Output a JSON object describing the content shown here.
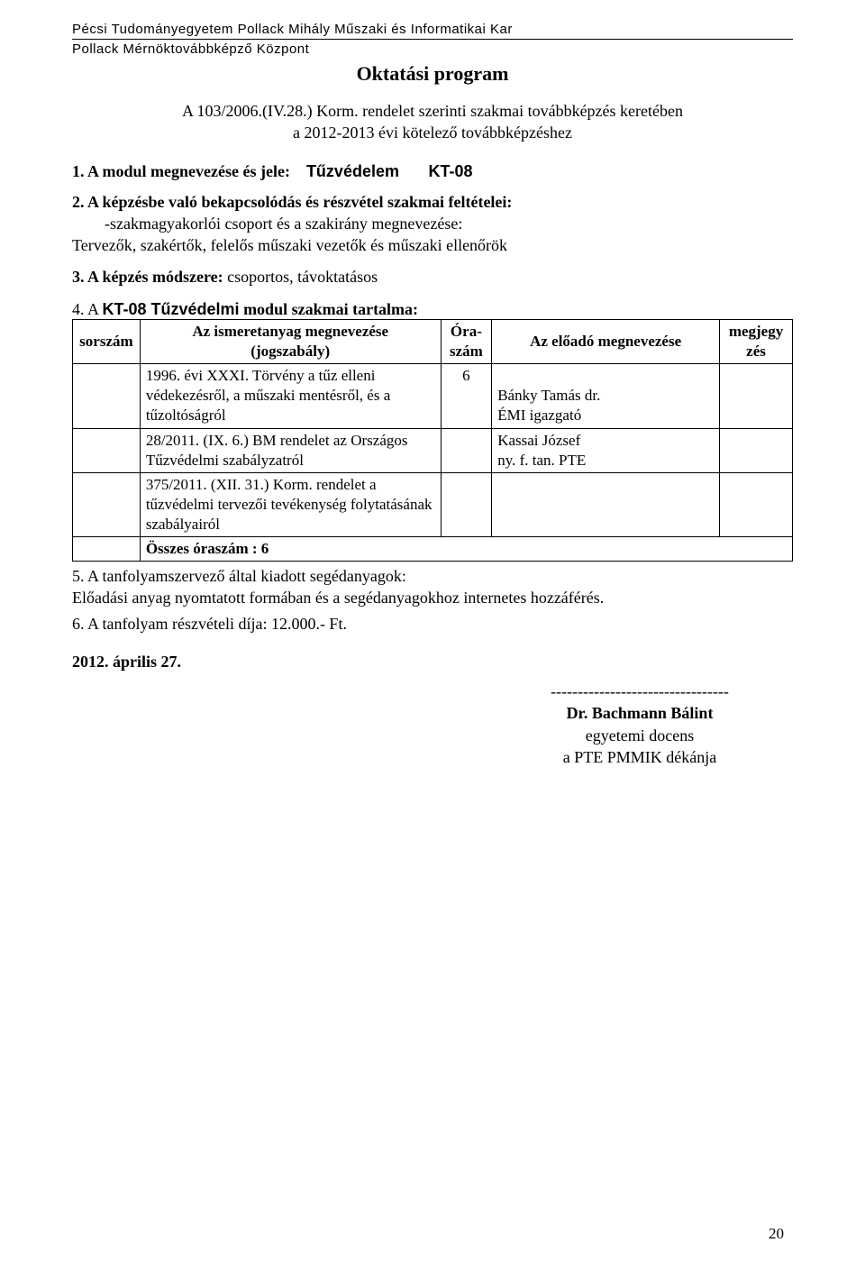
{
  "header": {
    "line1": "Pécsi Tudományegyetem Pollack Mihály Műszaki és Informatikai Kar",
    "line2": "Pollack Mérnöktovábbképző Központ"
  },
  "title": "Oktatási program",
  "intro": {
    "l1": "A 103/2006.(IV.28.) Korm. rendelet szerinti szakmai továbbképzés keretében",
    "l2": "a 2012-2013 évi kötelező továbbképzéshez"
  },
  "s1": {
    "label": "1. A modul megnevezése és jele:",
    "module_name": "Tűzvédelem",
    "module_code": "KT-08"
  },
  "s2": {
    "label": "2. A képzésbe való bekapcsolódás és részvétel szakmai feltételei:",
    "sub": "-szakmagyakorlói csoport és a szakirány megnevezése:",
    "body": "Tervezők, szakértők, felelős műszaki vezetők és műszaki ellenőrök"
  },
  "s3": {
    "text_bold": "3. A képzés módszere:",
    "text_rest": " csoportos, távoktatásos"
  },
  "s4": {
    "prefix": "4. A ",
    "module": "KT-08 Tűzvédelmi",
    "suffix": " modul szakmai tartalma:"
  },
  "table": {
    "head": {
      "sorszam": "sorszám",
      "megnev_l1": "Az ismeretanyag megnevezése",
      "megnev_l2": "(jogszabály)",
      "ora_l1": "Óra-",
      "ora_l2": "szám",
      "eloado": "Az előadó megnevezése",
      "megjegy_l1": "megjegy",
      "megjegy_l2": "zés"
    },
    "rows": [
      {
        "megnev_bold": "1996. évi XXXI.",
        "megnev_rest": " Törvény a tűz elleni védekezésről, a műszaki mentésről, és a tűzoltóságról",
        "ora": "6",
        "eloado_l1_bold": "Bánky Tamás dr.",
        "eloado_l2": "ÉMI igazgató"
      },
      {
        "megnev_bold": "28/2011. (IX. 6.) BM rendelet",
        "megnev_rest": " az Országos Tűzvédelmi szabályzatról",
        "ora": "",
        "eloado_l1_bold": "Kassai József",
        "eloado_l2": "ny. f. tan. PTE"
      },
      {
        "megnev_bold": "375/2011. (XII. 31.) Korm.",
        "megnev_rest": " rendelet a tűzvédelmi tervezői tevékenység folytatásának szabályairól",
        "ora": "",
        "eloado_l1_bold": "",
        "eloado_l2": ""
      }
    ],
    "total": "Összes óraszám : 6"
  },
  "s5": {
    "label": "5. A tanfolyamszervező által kiadott segédanyagok:",
    "body": "Előadási anyag nyomtatott formában és a segédanyagokhoz internetes hozzáférés."
  },
  "s6": {
    "text": "6. A tanfolyam részvételi díja: 12.000.- Ft."
  },
  "date": "2012. április 27.",
  "signature": {
    "rule": "---------------------------------",
    "name": "Dr. Bachmann Bálint",
    "title1": "egyetemi docens",
    "title2": "a PTE PMMIK dékánja"
  },
  "page_number": "20",
  "colors": {
    "text": "#000000",
    "background": "#ffffff",
    "border": "#000000"
  }
}
